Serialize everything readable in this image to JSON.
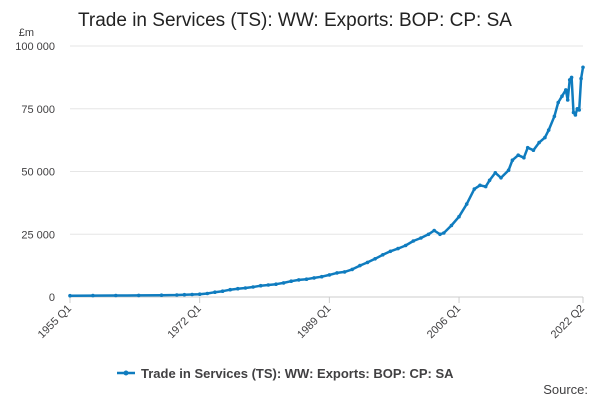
{
  "chart_data": {
    "type": "line",
    "title": "Trade in Services (TS): WW: Exports: BOP: CP: SA",
    "ylabel": "£m",
    "ylim": [
      0,
      100000
    ],
    "yticks": [
      0,
      25000,
      50000,
      75000,
      100000
    ],
    "ytick_labels": [
      "0",
      "25 000",
      "50 000",
      "75 000",
      "100 000"
    ],
    "xlim": [
      1955.0,
      2022.25
    ],
    "xticks": [
      1955.0,
      1972.0,
      1989.0,
      2006.0,
      2022.25
    ],
    "xtick_labels": [
      "1955 Q1",
      "1972 Q1",
      "1989 Q1",
      "2006 Q1",
      "2022 Q2"
    ],
    "grid": true,
    "legend_position": "bottom-center",
    "series": [
      {
        "name": "Trade in Services (TS): WW: Exports: BOP: CP: SA",
        "color": "#0f7cbf",
        "points": [
          [
            1955.0,
            500
          ],
          [
            1958.0,
            550
          ],
          [
            1961.0,
            600
          ],
          [
            1964.0,
            650
          ],
          [
            1967.0,
            700
          ],
          [
            1969.0,
            800
          ],
          [
            1970.0,
            900
          ],
          [
            1971.0,
            1000
          ],
          [
            1972.0,
            1100
          ],
          [
            1973.0,
            1400
          ],
          [
            1974.0,
            1900
          ],
          [
            1975.0,
            2300
          ],
          [
            1976.0,
            2900
          ],
          [
            1977.0,
            3300
          ],
          [
            1978.0,
            3600
          ],
          [
            1979.0,
            4000
          ],
          [
            1980.0,
            4500
          ],
          [
            1981.0,
            4800
          ],
          [
            1982.0,
            5100
          ],
          [
            1983.0,
            5600
          ],
          [
            1984.0,
            6300
          ],
          [
            1985.0,
            6800
          ],
          [
            1986.0,
            7100
          ],
          [
            1987.0,
            7600
          ],
          [
            1988.0,
            8100
          ],
          [
            1989.0,
            8800
          ],
          [
            1990.0,
            9600
          ],
          [
            1991.0,
            10000
          ],
          [
            1992.0,
            11000
          ],
          [
            1993.0,
            12500
          ],
          [
            1994.0,
            13800
          ],
          [
            1995.0,
            15200
          ],
          [
            1996.0,
            16800
          ],
          [
            1997.0,
            18200
          ],
          [
            1998.0,
            19300
          ],
          [
            1999.0,
            20500
          ],
          [
            2000.0,
            22300
          ],
          [
            2001.0,
            23500
          ],
          [
            2002.0,
            25000
          ],
          [
            2002.75,
            26500
          ],
          [
            2003.5,
            25000
          ],
          [
            2004.0,
            25500
          ],
          [
            2005.0,
            28500
          ],
          [
            2006.0,
            32000
          ],
          [
            2007.0,
            37000
          ],
          [
            2008.0,
            43000
          ],
          [
            2008.75,
            44500
          ],
          [
            2009.5,
            44000
          ],
          [
            2010.0,
            46500
          ],
          [
            2010.75,
            49500
          ],
          [
            2011.5,
            47500
          ],
          [
            2012.5,
            50500
          ],
          [
            2013.0,
            54500
          ],
          [
            2013.75,
            56500
          ],
          [
            2014.5,
            55500
          ],
          [
            2015.0,
            59500
          ],
          [
            2015.75,
            58500
          ],
          [
            2016.5,
            61500
          ],
          [
            2017.25,
            63500
          ],
          [
            2017.75,
            66500
          ],
          [
            2018.5,
            72000
          ],
          [
            2019.0,
            77500
          ],
          [
            2019.5,
            80000
          ],
          [
            2020.0,
            82500
          ],
          [
            2020.25,
            78500
          ],
          [
            2020.5,
            86500
          ],
          [
            2020.75,
            87500
          ],
          [
            2021.0,
            73500
          ],
          [
            2021.25,
            72500
          ],
          [
            2021.5,
            75000
          ],
          [
            2021.75,
            74500
          ],
          [
            2022.0,
            87000
          ],
          [
            2022.25,
            91500
          ]
        ]
      }
    ]
  },
  "source_label": "Source:"
}
